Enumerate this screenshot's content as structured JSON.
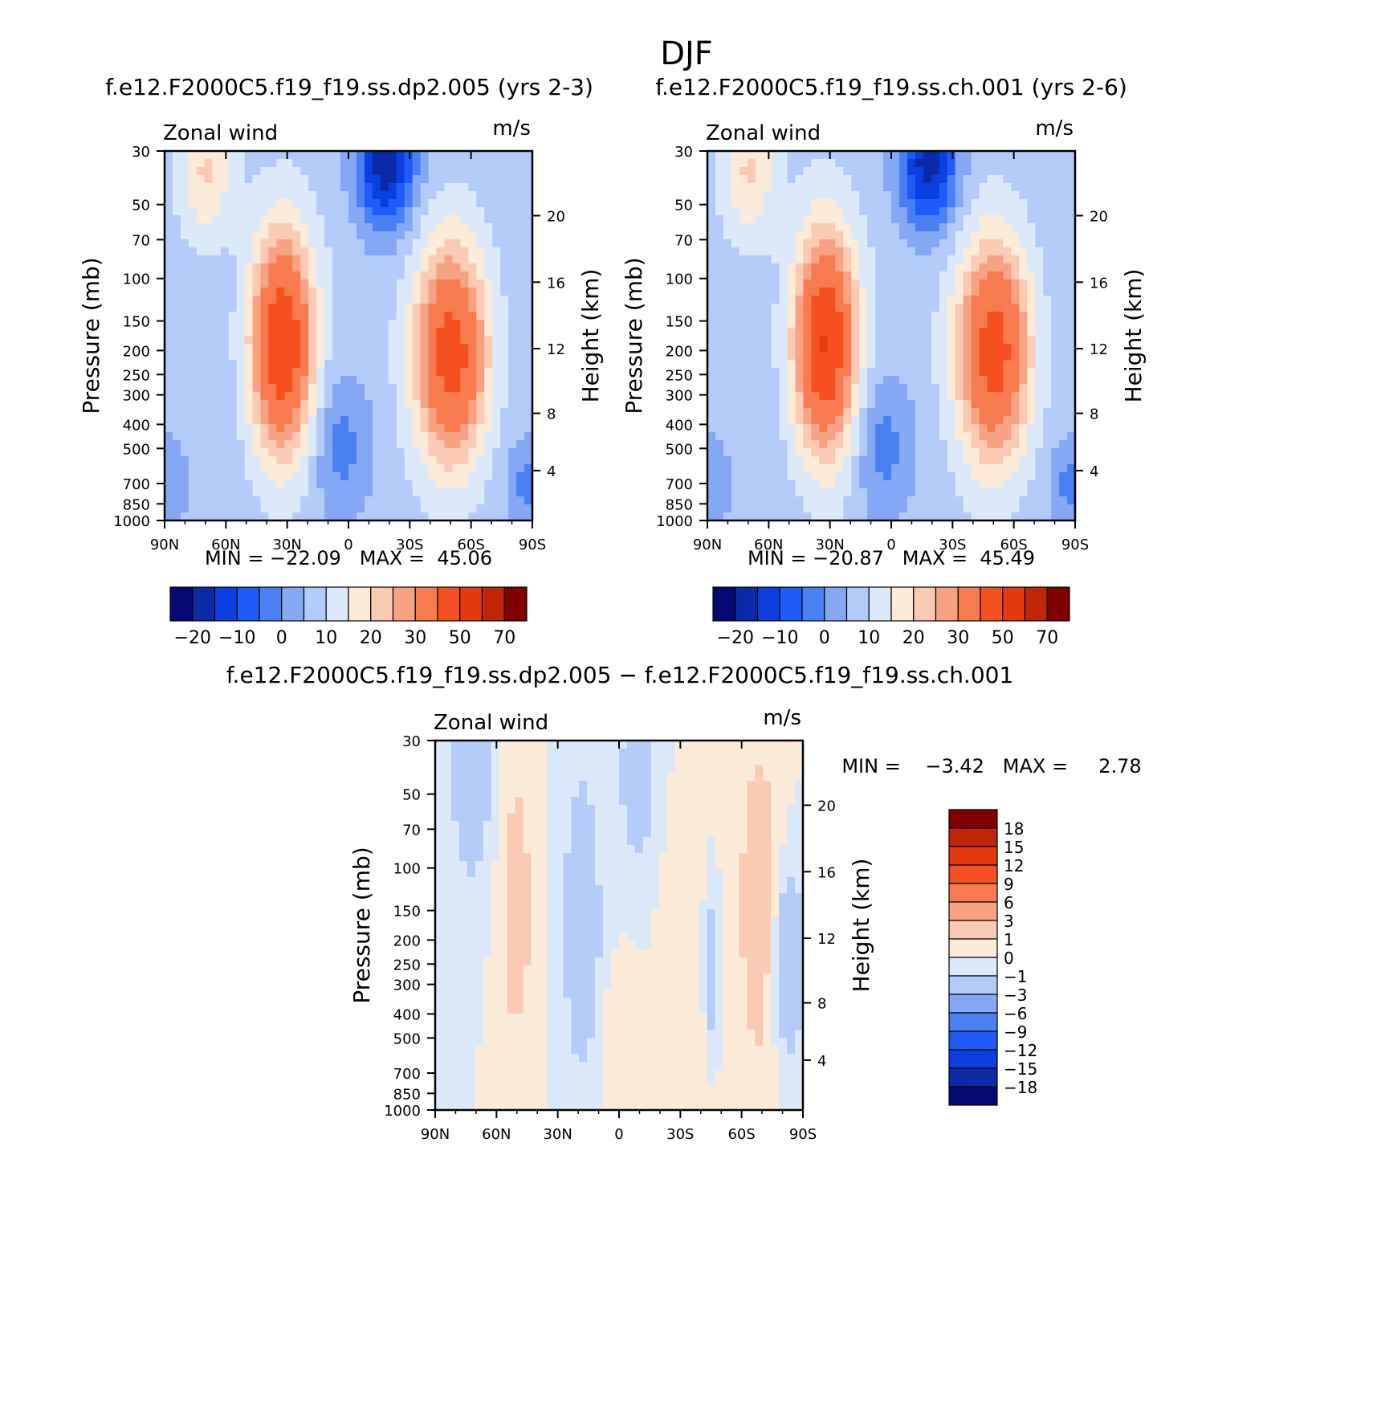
{
  "page_title": "DJF",
  "ramp_main": [
    "#050a72",
    "#0a2aa8",
    "#0b3fe0",
    "#1f5cf7",
    "#4a80f2",
    "#85a8f5",
    "#b3cbf8",
    "#dbe9fb",
    "#fdebd9",
    "#fbcab2",
    "#f7a383",
    "#f77b4e",
    "#f5501f",
    "#e33b0d",
    "#bf2606",
    "#800000"
  ],
  "ramp_diff": [
    "#050a72",
    "#0a2aa8",
    "#0b3fe0",
    "#1f5cf7",
    "#4a80f2",
    "#85a8f5",
    "#b3cbf8",
    "#dbe9fb",
    "#fdebd9",
    "#fbcab2",
    "#f7a383",
    "#f77b4e",
    "#f5501f",
    "#e33b0d",
    "#bf2606",
    "#800000"
  ],
  "chart_data": [
    {
      "type": "heatmap",
      "title": "f.e12.F2000C5.f19_f19.ss.dp2.005 (yrs 2-3)",
      "left_label": "Zonal wind",
      "right_label": "m/s",
      "xlabel": "",
      "ylabel": "Pressure (mb)",
      "ylabel_right": "Height (km)",
      "x_ticks": [
        "90N",
        "60N",
        "30N",
        "0",
        "30S",
        "60S",
        "90S"
      ],
      "y_ticks": [
        "30",
        "50",
        "70",
        "100",
        "150",
        "200",
        "250",
        "300",
        "400",
        "500",
        "700",
        "850",
        "1000"
      ],
      "y_right_ticks": [
        "20",
        "16",
        "12",
        "8",
        "4"
      ],
      "stats": "MIN = −22.09   MAX =  45.06",
      "colorbar_labels": [
        "−20",
        "−10",
        "0",
        "10",
        "20",
        "30",
        "50",
        "70"
      ],
      "min": -22.09,
      "max": 45.06
    },
    {
      "type": "heatmap",
      "title": "f.e12.F2000C5.f19_f19.ss.ch.001 (yrs 2-6)",
      "left_label": "Zonal wind",
      "right_label": "m/s",
      "xlabel": "",
      "ylabel": "Pressure (mb)",
      "ylabel_right": "Height (km)",
      "x_ticks": [
        "90N",
        "60N",
        "30N",
        "0",
        "30S",
        "60S",
        "90S"
      ],
      "y_ticks": [
        "30",
        "50",
        "70",
        "100",
        "150",
        "200",
        "250",
        "300",
        "400",
        "500",
        "700",
        "850",
        "1000"
      ],
      "y_right_ticks": [
        "20",
        "16",
        "12",
        "8",
        "4"
      ],
      "stats": "MIN = −20.87   MAX =  45.49",
      "colorbar_labels": [
        "−20",
        "−10",
        "0",
        "10",
        "20",
        "30",
        "50",
        "70"
      ],
      "min": -20.87,
      "max": 45.49
    },
    {
      "type": "heatmap",
      "title": "f.e12.F2000C5.f19_f19.ss.dp2.005 − f.e12.F2000C5.f19_f19.ss.ch.001",
      "left_label": "Zonal wind",
      "right_label": "m/s",
      "xlabel": "",
      "ylabel": "Pressure (mb)",
      "ylabel_right": "Height (km)",
      "x_ticks": [
        "90N",
        "60N",
        "30N",
        "0",
        "30S",
        "60S",
        "90S"
      ],
      "y_ticks": [
        "30",
        "50",
        "70",
        "100",
        "150",
        "200",
        "250",
        "300",
        "400",
        "500",
        "700",
        "850",
        "1000"
      ],
      "y_right_ticks": [
        "20",
        "16",
        "12",
        "8",
        "4"
      ],
      "stats": "MIN =    −3.42   MAX =     2.78",
      "colorbar_labels": [
        "18",
        "15",
        "12",
        "9",
        "6",
        "3",
        "1",
        "0",
        "−1",
        "−3",
        "−6",
        "−9",
        "−12",
        "−15",
        "−18"
      ],
      "min": -3.42,
      "max": 2.78
    }
  ]
}
